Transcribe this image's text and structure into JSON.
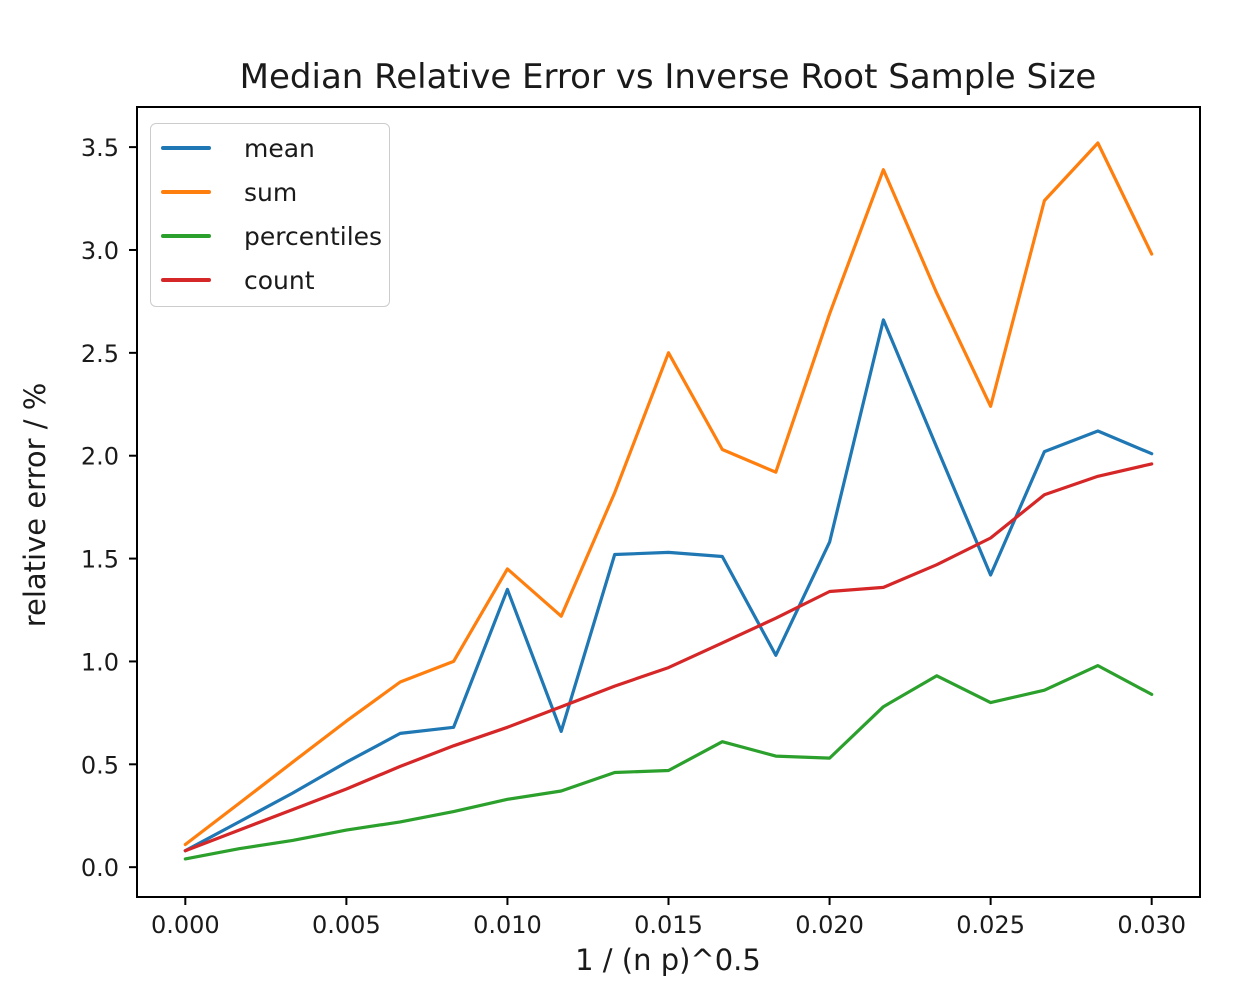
{
  "figure": {
    "background": "#ffffff",
    "text_color": "#1a1a1a",
    "spine_color": "#000000"
  },
  "chart_data": {
    "type": "line",
    "title": "Median Relative Error vs Inverse Root Sample Size",
    "xlabel": "1 / (n p)^0.5",
    "ylabel": "relative error / %",
    "xlim": [
      -0.0015,
      0.0315
    ],
    "ylim": [
      -0.145,
      3.695
    ],
    "grid": false,
    "legend_position": "upper left",
    "x_ticks": [
      0.0,
      0.005,
      0.01,
      0.015,
      0.02,
      0.025,
      0.03
    ],
    "x_tick_labels": [
      "0.000",
      "0.005",
      "0.010",
      "0.015",
      "0.020",
      "0.025",
      "0.030"
    ],
    "y_ticks": [
      0.0,
      0.5,
      1.0,
      1.5,
      2.0,
      2.5,
      3.0,
      3.5
    ],
    "y_tick_labels": [
      "0.0",
      "0.5",
      "1.0",
      "1.5",
      "2.0",
      "2.5",
      "3.0",
      "3.5"
    ],
    "x": [
      0.0,
      0.00167,
      0.00333,
      0.005,
      0.00667,
      0.00833,
      0.01,
      0.01167,
      0.01333,
      0.015,
      0.01667,
      0.01833,
      0.02,
      0.02167,
      0.02333,
      0.025,
      0.02667,
      0.02833,
      0.03
    ],
    "series": [
      {
        "name": "mean",
        "color": "#1f77b4",
        "values": [
          0.08,
          0.22,
          0.36,
          0.51,
          0.65,
          0.68,
          1.35,
          0.66,
          1.52,
          1.53,
          1.51,
          1.03,
          1.58,
          2.66,
          2.04,
          1.42,
          2.02,
          2.12,
          2.01
        ]
      },
      {
        "name": "sum",
        "color": "#ff7f0e",
        "values": [
          0.11,
          0.31,
          0.51,
          0.71,
          0.9,
          1.0,
          1.45,
          1.22,
          1.82,
          2.5,
          2.03,
          1.92,
          2.69,
          3.39,
          2.79,
          2.24,
          3.24,
          3.52,
          2.98
        ]
      },
      {
        "name": "percentiles",
        "color": "#2ca02c",
        "values": [
          0.04,
          0.09,
          0.13,
          0.18,
          0.22,
          0.27,
          0.33,
          0.37,
          0.46,
          0.47,
          0.61,
          0.54,
          0.53,
          0.78,
          0.93,
          0.8,
          0.86,
          0.98,
          0.84
        ]
      },
      {
        "name": "count",
        "color": "#d62728",
        "values": [
          0.08,
          0.18,
          0.28,
          0.38,
          0.49,
          0.59,
          0.68,
          0.78,
          0.88,
          0.97,
          1.09,
          1.21,
          1.34,
          1.36,
          1.47,
          1.6,
          1.81,
          1.9,
          1.96
        ]
      }
    ]
  }
}
